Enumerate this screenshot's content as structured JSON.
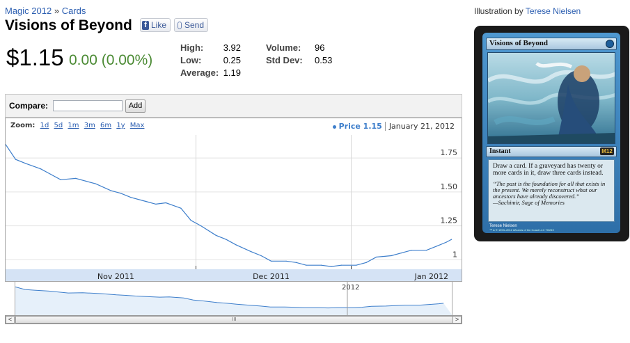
{
  "breadcrumb": {
    "set": "Magic 2012",
    "separator": "»",
    "section": "Cards"
  },
  "card_title": "Visions of Beyond",
  "social": {
    "like_label": "Like",
    "send_label": "Send"
  },
  "quote": {
    "price": "$1.15",
    "change": "0.00 (0.00%)"
  },
  "stats": {
    "high_label": "High:",
    "high": "3.92",
    "low_label": "Low:",
    "low": "0.25",
    "average_label": "Average:",
    "average": "1.19",
    "volume_label": "Volume:",
    "volume": "96",
    "stddev_label": "Std Dev:",
    "stddev": "0.53"
  },
  "compare": {
    "label": "Compare:",
    "input_value": "",
    "add_label": "Add"
  },
  "zoom": {
    "label": "Zoom:",
    "options": [
      "1d",
      "5d",
      "1m",
      "3m",
      "6m",
      "1y",
      "Max"
    ]
  },
  "legend": {
    "series_label": "Price 1.15",
    "date": "January 21, 2012"
  },
  "navigator": {
    "year_label": "2012",
    "grip": "III",
    "left_arrow": "<",
    "right_arrow": ">"
  },
  "illustration": {
    "prefix": "Illustration by",
    "artist": "Terese Nielsen"
  },
  "card_image": {
    "name": "Visions of Beyond",
    "type": "Instant",
    "set_symbol": "M12",
    "rules": "Draw a card. If a graveyard has twenty or more cards in it, draw three cards instead.",
    "flavor": "“The past is the foundation for all that exists in the present. We merely reconstruct what our ancestors have already discovered.”",
    "flavor_attrib": "—Sachimir, Sage of Memories",
    "artist": "Terese Nielsen",
    "legal": "™ & © 1993–2011 Wizards of the Coast LLC 70/249"
  },
  "colors": {
    "line": "#3d7ecb",
    "positive": "#4a8a33",
    "link": "#2a5db0"
  },
  "chart_data": {
    "type": "line",
    "xlabel": "",
    "ylabel": "",
    "x_tick_labels": [
      "Nov 2011",
      "Dec 2011",
      "Jan 2012"
    ],
    "y_tick_labels": [
      "1",
      "1.25",
      "1.50",
      "1.75"
    ],
    "ylim": [
      0.93,
      1.92
    ],
    "grid": true,
    "series": [
      {
        "name": "Price",
        "x": [
          "2011-10-24",
          "2011-10-26",
          "2011-10-28",
          "2011-10-31",
          "2011-11-02",
          "2011-11-04",
          "2011-11-07",
          "2011-11-09",
          "2011-11-11",
          "2011-11-14",
          "2011-11-16",
          "2011-11-18",
          "2011-11-21",
          "2011-11-23",
          "2011-11-25",
          "2011-11-28",
          "2011-11-30",
          "2011-12-02",
          "2011-12-05",
          "2011-12-07",
          "2011-12-09",
          "2011-12-12",
          "2011-12-14",
          "2011-12-16",
          "2011-12-19",
          "2011-12-21",
          "2011-12-23",
          "2011-12-26",
          "2011-12-28",
          "2011-12-30",
          "2012-01-02",
          "2012-01-04",
          "2012-01-06",
          "2012-01-09",
          "2012-01-11",
          "2012-01-13",
          "2012-01-16",
          "2012-01-18",
          "2012-01-20",
          "2012-01-21"
        ],
        "values": [
          1.85,
          1.74,
          1.71,
          1.67,
          1.63,
          1.59,
          1.6,
          1.58,
          1.56,
          1.51,
          1.49,
          1.46,
          1.43,
          1.41,
          1.42,
          1.38,
          1.29,
          1.25,
          1.18,
          1.15,
          1.11,
          1.06,
          1.03,
          0.99,
          0.99,
          0.98,
          0.96,
          0.96,
          0.95,
          0.96,
          0.96,
          0.98,
          1.02,
          1.03,
          1.05,
          1.07,
          1.07,
          1.1,
          1.13,
          1.15
        ]
      }
    ]
  }
}
